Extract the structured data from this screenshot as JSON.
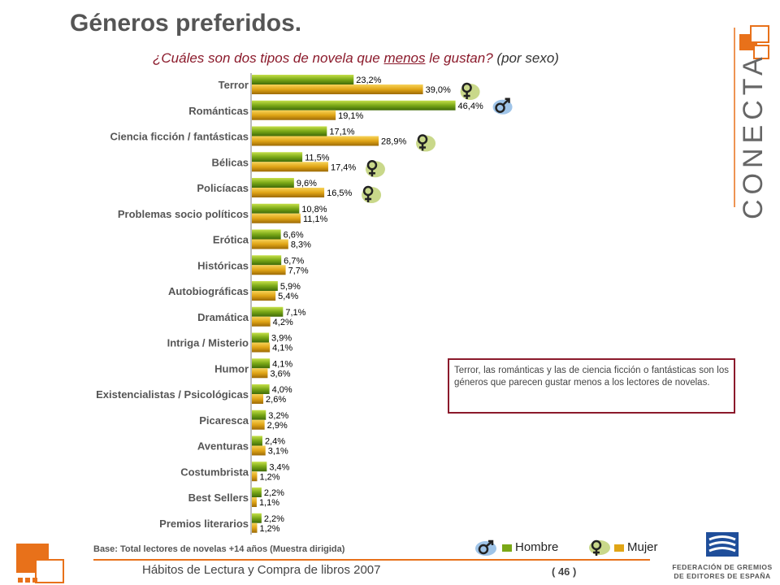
{
  "title": "Géneros preferidos.",
  "subtitle": {
    "part1": "¿Cuáles son dos tipos de novela que ",
    "underlined": "menos",
    "part2": " le gustan?",
    "part3": " (por sexo)"
  },
  "note": "Terror, las románticas y las de ciencia ficción o fantásticas son los géneros que parecen gustar menos a los lectores de novelas.",
  "base": "Base:  Total lectores de novelas +14 años (Muestra dirigida)",
  "footer": "Hábitos de Lectura y Compra de libros 2007",
  "page_number": "( 46 )",
  "logo_text": "CONECTA",
  "publisher": {
    "line1": "FEDERACIÓN DE GREMIOS",
    "line2": "DE EDITORES DE ESPAÑA"
  },
  "colors": {
    "hombre": "#7aa817",
    "mujer": "#e0a516",
    "accent": "#e8711a",
    "dark_red": "#8b1a2b"
  },
  "chart_data": {
    "type": "bar",
    "orientation": "horizontal",
    "categories": [
      "Terror",
      "Románticas",
      "Ciencia ficción / fantásticas",
      "Bélicas",
      "Policíacas",
      "Problemas socio políticos",
      "Erótica",
      "Históricas",
      "Autobiográficas",
      "Dramática",
      "Intriga / Misterio",
      "Humor",
      "Existencialistas / Psicológicas",
      "Picaresca",
      "Aventuras",
      "Costumbrista",
      "Best Sellers",
      "Premios literarios"
    ],
    "series": [
      {
        "name": "Hombre",
        "values": [
          23.2,
          46.4,
          17.1,
          11.5,
          9.6,
          10.8,
          6.6,
          6.7,
          5.9,
          7.1,
          3.9,
          4.1,
          4.0,
          3.2,
          2.4,
          3.4,
          2.2,
          2.2
        ],
        "labels": [
          "23,2%",
          "46,4%",
          "17,1%",
          "11,5%",
          "9,6%",
          "10,8%",
          "6,6%",
          "6,7%",
          "5,9%",
          "7,1%",
          "3,9%",
          "4,1%",
          "4,0%",
          "3,2%",
          "2,4%",
          "3,4%",
          "2,2%",
          "2,2%"
        ]
      },
      {
        "name": "Mujer",
        "values": [
          39.0,
          19.1,
          28.9,
          17.4,
          16.5,
          11.1,
          8.3,
          7.7,
          5.4,
          4.2,
          4.1,
          3.6,
          2.6,
          2.9,
          3.1,
          1.2,
          1.1,
          1.2
        ],
        "labels": [
          "39,0%",
          "19,1%",
          "28,9%",
          "17,4%",
          "16,5%",
          "11,1%",
          "8,3%",
          "7,7%",
          "5,4%",
          "4,2%",
          "4,1%",
          "3,6%",
          "2,6%",
          "2,9%",
          "3,1%",
          "1,2%",
          "1,1%",
          "1,2%"
        ]
      }
    ],
    "symbol_markers": [
      {
        "category": "Terror",
        "series": "Mujer",
        "icon": "female-symbol-icon"
      },
      {
        "category": "Románticas",
        "series": "Hombre",
        "icon": "male-symbol-icon"
      },
      {
        "category": "Ciencia ficción / fantásticas",
        "series": "Mujer",
        "icon": "female-symbol-icon"
      },
      {
        "category": "Bélicas",
        "series": "Mujer",
        "icon": "female-symbol-icon"
      },
      {
        "category": "Policíacas",
        "series": "Mujer",
        "icon": "female-symbol-icon"
      }
    ],
    "xlim": [
      0,
      50
    ],
    "grid": false,
    "legend_position": "bottom-right"
  }
}
